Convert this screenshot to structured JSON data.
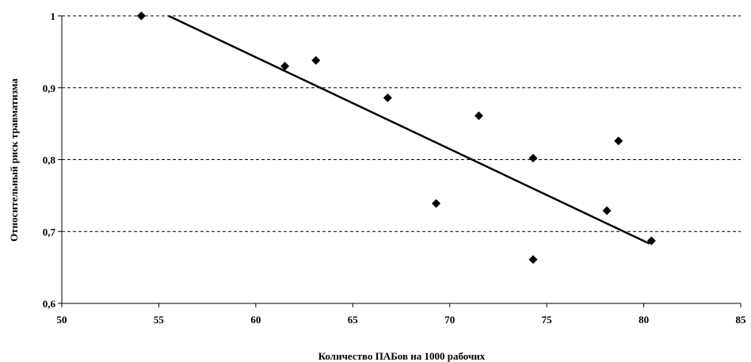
{
  "chart_data": {
    "type": "scatter",
    "xlabel": "Количество ПАБов на 1000 рабочих",
    "ylabel": "Относительный риск травматизма",
    "xlim": [
      50,
      85
    ],
    "ylim": [
      0.6,
      1.0
    ],
    "x_ticks": [
      50,
      55,
      60,
      65,
      70,
      75,
      80,
      85
    ],
    "y_ticks": [
      0.6,
      0.7,
      0.8,
      0.9,
      1.0
    ],
    "x_tick_labels": [
      "50",
      "55",
      "60",
      "65",
      "70",
      "75",
      "80",
      "85"
    ],
    "y_tick_labels": [
      "0,6",
      "0,7",
      "0,8",
      "0,9",
      "1"
    ],
    "grid": "horizontal dashed",
    "marker": "diamond",
    "colors": {
      "marker": "#000000",
      "trendline": "#000000",
      "grid": "#000000"
    },
    "points": [
      {
        "x": 54.1,
        "y": 1.0
      },
      {
        "x": 61.5,
        "y": 0.93
      },
      {
        "x": 63.1,
        "y": 0.938
      },
      {
        "x": 66.8,
        "y": 0.886
      },
      {
        "x": 69.3,
        "y": 0.739
      },
      {
        "x": 71.5,
        "y": 0.861
      },
      {
        "x": 74.3,
        "y": 0.661
      },
      {
        "x": 74.3,
        "y": 0.802
      },
      {
        "x": 78.1,
        "y": 0.729
      },
      {
        "x": 78.7,
        "y": 0.826
      },
      {
        "x": 80.4,
        "y": 0.687
      }
    ],
    "trendline": {
      "x": [
        55.5,
        80.3
      ],
      "y": [
        1.0,
        0.683
      ]
    }
  }
}
